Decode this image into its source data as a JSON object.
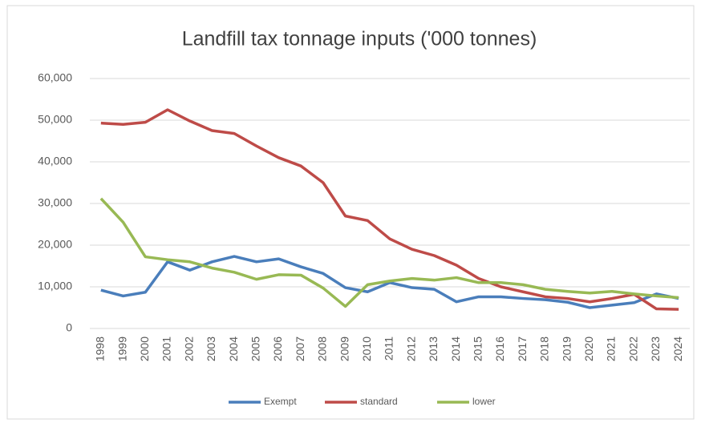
{
  "chart_data": {
    "type": "line",
    "title": "Landfill tax tonnage inputs ('000 tonnes)",
    "categories": [
      "1998",
      "1999",
      "2000",
      "2001",
      "2002",
      "2003",
      "2004",
      "2005",
      "2006",
      "2007",
      "2008",
      "2009",
      "2010",
      "2011",
      "2012",
      "2013",
      "2014",
      "2015",
      "2016",
      "2017",
      "2018",
      "2019",
      "2020",
      "2021",
      "2022",
      "2023",
      "2024"
    ],
    "series": [
      {
        "name": "Exempt",
        "color": "#4a7ebb",
        "values": [
          9200,
          7800,
          8700,
          16000,
          14000,
          16000,
          17300,
          16000,
          16700,
          14800,
          13200,
          9800,
          8800,
          11000,
          9800,
          9400,
          6400,
          7600,
          7600,
          7200,
          6900,
          6300,
          5000,
          5600,
          6200,
          8300,
          7200
        ]
      },
      {
        "name": "standard",
        "color": "#be4b48",
        "values": [
          49300,
          49000,
          49500,
          52500,
          49800,
          47500,
          46800,
          43800,
          41000,
          39000,
          35000,
          27000,
          25900,
          21500,
          19000,
          17500,
          15200,
          12000,
          10000,
          8800,
          7600,
          7200,
          6400,
          7200,
          8200,
          4700,
          4600
        ]
      },
      {
        "name": "lower",
        "color": "#98b954",
        "values": [
          31200,
          25500,
          17200,
          16500,
          16000,
          14500,
          13500,
          11800,
          12900,
          12800,
          9700,
          5300,
          10500,
          11400,
          12000,
          11600,
          12200,
          11000,
          11000,
          10500,
          9400,
          8900,
          8500,
          8900,
          8300,
          7800,
          7400
        ]
      }
    ],
    "ylim": [
      0,
      60000
    ],
    "yticks": [
      0,
      {
        "value": 10000,
        "label": "10,000"
      },
      {
        "value": 20000,
        "label": "20,000"
      },
      {
        "value": 30000,
        "label": "30,000"
      },
      {
        "value": 40000,
        "label": "40,000"
      },
      {
        "value": 50000,
        "label": "50,000"
      },
      {
        "value": 60000,
        "label": "60,000"
      }
    ],
    "grid": true,
    "legend": "bottom"
  }
}
